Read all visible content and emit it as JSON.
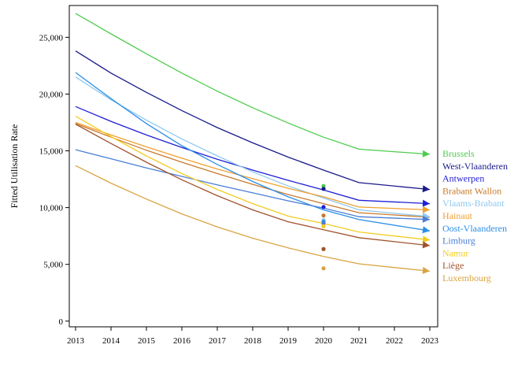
{
  "chart_data": {
    "type": "line",
    "title": "",
    "xlabel": "",
    "ylabel": "Fitted Utilisation Rate",
    "x": [
      2013,
      2014,
      2015,
      2016,
      2017,
      2018,
      2019,
      2020,
      2021,
      2022,
      2023
    ],
    "x_ticks": [
      "2013",
      "2014",
      "2015",
      "2016",
      "2017",
      "2018",
      "2019",
      "2020",
      "2021",
      "2022",
      "2023"
    ],
    "y_ticks": [
      "0",
      "5,000",
      "10,000",
      "15,000",
      "20,000",
      "25,000"
    ],
    "y_tick_values": [
      0,
      5000,
      10000,
      15000,
      20000,
      25000
    ],
    "xlim": [
      2013,
      2023
    ],
    "ylim": [
      -500,
      27800
    ],
    "grid": false,
    "legend_position": "right",
    "series": [
      {
        "name": "Brussels",
        "color": "#4ccc4c",
        "x": [
          2013,
          2014,
          2015,
          2016,
          2017,
          2018,
          2019,
          2020,
          2021,
          2023
        ],
        "values": [
          27100,
          25300,
          23550,
          21850,
          20250,
          18800,
          17450,
          16200,
          15150,
          14700
        ],
        "point_2020": 11900
      },
      {
        "name": "West-Vlaanderen",
        "color": "#1a1a8c",
        "x": [
          2013,
          2014,
          2015,
          2016,
          2017,
          2018,
          2019,
          2020,
          2021,
          2023
        ],
        "values": [
          23800,
          21850,
          20150,
          18550,
          17050,
          15700,
          14450,
          13300,
          12200,
          11600
        ],
        "point_2020": 11650
      },
      {
        "name": "Antwerpen",
        "color": "#1f1fd6",
        "x": [
          2013,
          2014,
          2015,
          2016,
          2017,
          2018,
          2019,
          2020,
          2021,
          2023
        ],
        "values": [
          18900,
          17600,
          16400,
          15300,
          14250,
          13300,
          12400,
          11550,
          10650,
          10350
        ],
        "point_2020": 10050
      },
      {
        "name": "Brabant Wallon",
        "color": "#c87a2c",
        "x": [
          2013,
          2014,
          2015,
          2016,
          2017,
          2018,
          2019,
          2020,
          2021,
          2023
        ],
        "values": [
          17400,
          16200,
          15050,
          14000,
          13000,
          12050,
          11150,
          10350,
          9550,
          9150
        ],
        "point_2020": 9300
      },
      {
        "name": "Vlaams-Brabant",
        "color": "#8fc9ee",
        "x": [
          2013,
          2014,
          2015,
          2016,
          2017,
          2018,
          2019,
          2020,
          2021,
          2023
        ],
        "values": [
          21500,
          19500,
          17700,
          16050,
          14550,
          13150,
          11900,
          10850,
          9800,
          9200
        ],
        "point_2020": 8900
      },
      {
        "name": "Hainaut",
        "color": "#f0a030",
        "x": [
          2013,
          2014,
          2015,
          2016,
          2017,
          2018,
          2019,
          2020,
          2021,
          2023
        ],
        "values": [
          17500,
          16400,
          15350,
          14350,
          13400,
          12550,
          11700,
          10950,
          10050,
          9800
        ],
        "point_2020": 8550
      },
      {
        "name": "Oost-Vlaanderen",
        "color": "#2b8ee8",
        "x": [
          2013,
          2014,
          2015,
          2016,
          2017,
          2018,
          2019,
          2020,
          2021,
          2023
        ],
        "values": [
          21900,
          19600,
          17400,
          15450,
          13800,
          12300,
          10950,
          9800,
          8950,
          7950
        ],
        "point_2020": 8750
      },
      {
        "name": "Limburg",
        "color": "#4a7fd6",
        "x": [
          2013,
          2014,
          2015,
          2016,
          2017,
          2018,
          2019,
          2020,
          2021,
          2023
        ],
        "values": [
          15100,
          14300,
          13500,
          12750,
          12000,
          11300,
          10600,
          9950,
          9200,
          8950
        ],
        "point_2020": 8650
      },
      {
        "name": "Namur",
        "color": "#f2cc22",
        "x": [
          2013,
          2014,
          2015,
          2016,
          2017,
          2018,
          2019,
          2020,
          2021,
          2023
        ],
        "values": [
          18050,
          16250,
          14550,
          13000,
          11600,
          10350,
          9250,
          8600,
          7850,
          7150
        ],
        "point_2020": 8350
      },
      {
        "name": "Liège",
        "color": "#a0522d",
        "x": [
          2013,
          2014,
          2015,
          2016,
          2017,
          2018,
          2019,
          2020,
          2021,
          2023
        ],
        "values": [
          17350,
          15650,
          14000,
          12450,
          11050,
          9800,
          8750,
          8050,
          7350,
          6650
        ],
        "point_2020": 6350
      },
      {
        "name": "Luxembourg",
        "color": "#d9a441",
        "x": [
          2013,
          2014,
          2015,
          2016,
          2017,
          2018,
          2019,
          2020,
          2021,
          2023
        ],
        "values": [
          13700,
          12150,
          10750,
          9450,
          8300,
          7300,
          6450,
          5700,
          5050,
          4400
        ],
        "point_2020": 4650
      }
    ]
  }
}
